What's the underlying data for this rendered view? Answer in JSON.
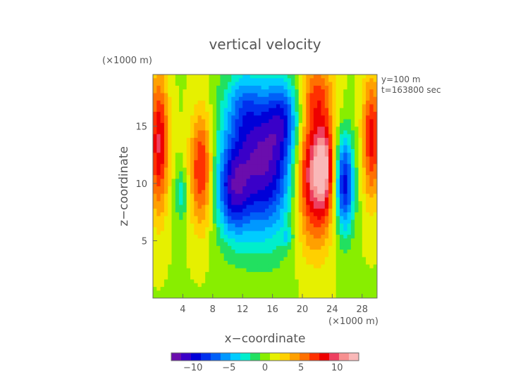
{
  "chart_data": {
    "type": "heatmap",
    "title": "vertical velocity",
    "xlabel": "x−coordinate",
    "ylabel": "z−coordinate",
    "x_unit_label": "(×1000 m)",
    "y_unit_label": "(×1000 m)",
    "annotation_line1": "y=100 m",
    "annotation_line2": "t=163800 sec",
    "xlim": [
      0,
      30
    ],
    "ylim": [
      0,
      19.5
    ],
    "xticks": [
      4,
      8,
      12,
      16,
      20,
      24,
      28
    ],
    "yticks": [
      5,
      10,
      15
    ],
    "colorbar": {
      "ticks": [
        -10,
        -5,
        0,
        5,
        10
      ],
      "range": [
        -13,
        13
      ],
      "colors": [
        "#6a0dad",
        "#3a00c8",
        "#0000d8",
        "#0030ee",
        "#0060f8",
        "#0098ff",
        "#00ccff",
        "#00eecc",
        "#22e060",
        "#88ee00",
        "#e6f000",
        "#ffd000",
        "#ffa000",
        "#ff7000",
        "#ff3000",
        "#ee0000",
        "#ee4060",
        "#f79090",
        "#f9b8b8"
      ]
    },
    "features": [
      {
        "x": 14.5,
        "z": 11.8,
        "value": -12.5,
        "sx": 3.6,
        "sz": 4.5
      },
      {
        "x": 10.6,
        "z": 9.2,
        "value": -6.0,
        "sx": 1.4,
        "sz": 2.6
      },
      {
        "x": 17.5,
        "z": 15.8,
        "value": -5.0,
        "sx": 1.6,
        "sz": 2.2
      },
      {
        "x": 12.0,
        "z": 17.0,
        "value": -3.0,
        "sx": 1.5,
        "sz": 2.0
      },
      {
        "x": 25.6,
        "z": 10.0,
        "value": -11.0,
        "sx": 0.9,
        "sz": 3.0
      },
      {
        "x": 3.8,
        "z": 9.0,
        "value": -3.5,
        "sx": 0.6,
        "sz": 1.5
      },
      {
        "x": 21.5,
        "z": 11.0,
        "value": 12.0,
        "sx": 1.9,
        "sz": 4.2
      },
      {
        "x": 23.0,
        "z": 11.5,
        "value": 5.0,
        "sx": 0.8,
        "sz": 2.5
      },
      {
        "x": 22.0,
        "z": 18.0,
        "value": 4.0,
        "sx": 1.5,
        "sz": 1.8
      },
      {
        "x": 6.5,
        "z": 11.3,
        "value": 8.0,
        "sx": 1.1,
        "sz": 3.6
      },
      {
        "x": 0.8,
        "z": 13.5,
        "value": 8.5,
        "sx": 0.9,
        "sz": 4.2
      },
      {
        "x": 29.3,
        "z": 14.0,
        "value": 7.5,
        "sx": 0.9,
        "sz": 3.8
      },
      {
        "x": 18.0,
        "z": 5.3,
        "value": -2.5,
        "sx": 0.5,
        "sz": 0.6
      }
    ]
  }
}
